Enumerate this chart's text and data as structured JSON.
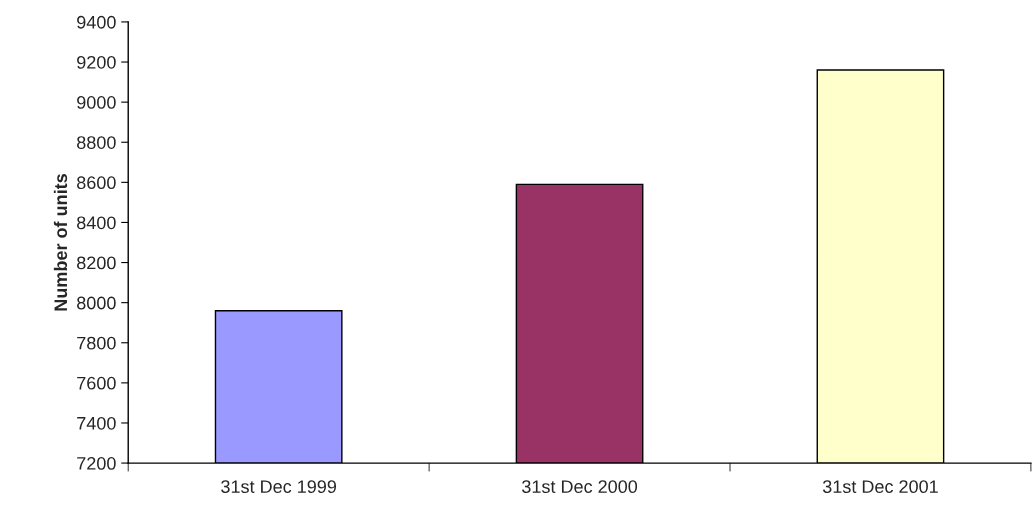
{
  "chart_data": {
    "type": "bar",
    "ylabel": "Number of units",
    "categories": [
      "31st Dec 1999",
      "31st Dec 2000",
      "31st Dec 2001"
    ],
    "values": [
      7960,
      8590,
      9160
    ],
    "colors": [
      "#9999ff",
      "#993366",
      "#ffffcc"
    ],
    "ylim": [
      7200,
      9400
    ],
    "yticks": [
      7200,
      7400,
      7600,
      7800,
      8000,
      8200,
      8400,
      8600,
      8800,
      9000,
      9200,
      9400
    ],
    "grid": false
  }
}
